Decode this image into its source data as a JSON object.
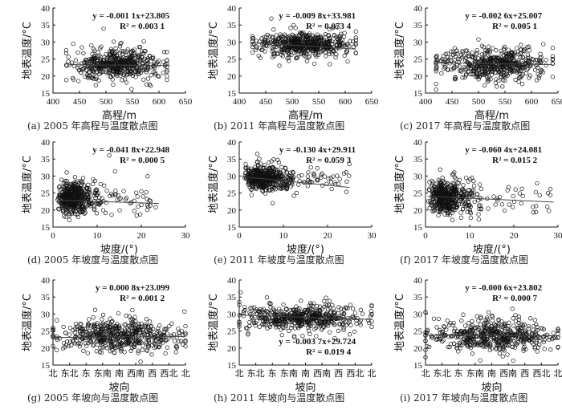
{
  "chart_data": [
    {
      "id": "a",
      "type": "scatter",
      "caption": "(a) 2005 年高程与温度散点图",
      "xlabel": "高程/m",
      "ylabel": "地表温度/°C",
      "xlim": [
        400,
        650
      ],
      "ylim": [
        15,
        40
      ],
      "xticks": [
        "400",
        "450",
        "500",
        "550",
        "600",
        "650"
      ],
      "yticks": [
        "15",
        "20",
        "25",
        "30",
        "35",
        "40"
      ],
      "equation": "y = -0.001 1x+23.805",
      "r2": "R² = 0.003 1",
      "annotation_pos": "top-right",
      "cloud": {
        "x_range": [
          425,
          615
        ],
        "y_center": 23.5,
        "y_spread": 2.2
      },
      "fit": {
        "x": [
          430,
          620
        ],
        "y": [
          23.33,
          23.12
        ]
      }
    },
    {
      "id": "b",
      "type": "scatter",
      "caption": "(b) 2011 年高程与温度散点图",
      "xlabel": "高程/m",
      "ylabel": "地表温度/°C",
      "xlim": [
        400,
        650
      ],
      "ylim": [
        15,
        40
      ],
      "xticks": [
        "400",
        "450",
        "500",
        "550",
        "600",
        "650"
      ],
      "yticks": [
        "15",
        "20",
        "25",
        "30",
        "35",
        "40"
      ],
      "equation": "y = -0.009 8x+33.981",
      "r2": "R² = 0.073 4",
      "annotation_pos": "top-right",
      "cloud": {
        "x_range": [
          425,
          620
        ],
        "y_center": 29.3,
        "y_spread": 1.8
      },
      "fit": {
        "x": [
          430,
          620
        ],
        "y": [
          29.77,
          27.91
        ]
      }
    },
    {
      "id": "c",
      "type": "scatter",
      "caption": "(c) 2017 年高程与温度散点图",
      "xlabel": "高程/m",
      "ylabel": "地表温度/°C",
      "xlim": [
        400,
        650
      ],
      "ylim": [
        15,
        40
      ],
      "xticks": [
        "400",
        "450",
        "500",
        "550",
        "600",
        "650"
      ],
      "yticks": [
        "15",
        "20",
        "25",
        "30",
        "35",
        "40"
      ],
      "equation": "y = -0.002 6x+25.007",
      "r2": "R² = 0.005 1",
      "annotation_pos": "top-right",
      "cloud": {
        "x_range": [
          420,
          640
        ],
        "y_center": 23.5,
        "y_spread": 2.3
      },
      "fit": {
        "x": [
          420,
          640
        ],
        "y": [
          23.9,
          23.34
        ]
      }
    },
    {
      "id": "d",
      "type": "scatter",
      "caption": "(d) 2005 年坡度与温度散点图",
      "xlabel": "坡度/(°)",
      "ylabel": "地表温度/°C",
      "xlim": [
        0,
        30
      ],
      "ylim": [
        15,
        40
      ],
      "xticks": [
        "0",
        "10",
        "20",
        "30"
      ],
      "yticks": [
        "15",
        "20",
        "25",
        "30",
        "35",
        "40"
      ],
      "equation": "y = -0.041 8x+22.948",
      "r2": "R² = 0.000 5",
      "annotation_pos": "top-right",
      "cloud": {
        "x_range": [
          1,
          24
        ],
        "x_center": 5,
        "y_center": 23.5,
        "y_spread": 2.3
      },
      "fit": {
        "x": [
          1,
          24
        ],
        "y": [
          22.91,
          21.94
        ]
      }
    },
    {
      "id": "e",
      "type": "scatter",
      "caption": "(e) 2011 年坡度与温度散点图",
      "xlabel": "坡度/(°)",
      "ylabel": "地表温度/°C",
      "xlim": [
        0,
        30
      ],
      "ylim": [
        15,
        40
      ],
      "xticks": [
        "0",
        "10",
        "20",
        "30"
      ],
      "yticks": [
        "15",
        "20",
        "25",
        "30",
        "35",
        "40"
      ],
      "equation": "y = -0.130 4x+29.911",
      "r2": "R² = 0.059 3",
      "annotation_pos": "top-right",
      "cloud": {
        "x_range": [
          1,
          25
        ],
        "x_center": 6,
        "y_center": 29.2,
        "y_spread": 1.8
      },
      "fit": {
        "x": [
          1,
          25
        ],
        "y": [
          29.78,
          26.65
        ]
      }
    },
    {
      "id": "f",
      "type": "scatter",
      "caption": "(f) 2017 年坡度与温度散点图",
      "xlabel": "坡度/(°)",
      "ylabel": "地表温度/°C",
      "xlim": [
        0,
        30
      ],
      "ylim": [
        15,
        40
      ],
      "xticks": [
        "0",
        "10",
        "20",
        "30"
      ],
      "yticks": [
        "15",
        "20",
        "25",
        "30",
        "35",
        "40"
      ],
      "equation": "y = -0.060 4x+24.081",
      "r2": "R² = 0.015 2",
      "annotation_pos": "top-right",
      "cloud": {
        "x_range": [
          0.5,
          29
        ],
        "x_center": 5,
        "y_center": 23.8,
        "y_spread": 2.4
      },
      "fit": {
        "x": [
          0.5,
          29
        ],
        "y": [
          24.05,
          22.33
        ]
      }
    },
    {
      "id": "g",
      "type": "scatter",
      "caption": "(g) 2005 年坡向与温度散点图",
      "xlabel": "坡向",
      "ylabel": "地表温度/°C",
      "xlim": [
        0,
        360
      ],
      "ylim": [
        15,
        40
      ],
      "xticks": [
        "北",
        "东北",
        "东",
        "东南",
        "南",
        "西南",
        "西",
        "西北",
        "北"
      ],
      "yticks": [
        "15",
        "20",
        "25",
        "30",
        "35",
        "40"
      ],
      "equation": "y = 0.000 8x+23.099",
      "r2": "R² = 0.001 2",
      "annotation_pos": "top-right",
      "cloud": {
        "x_range": [
          0,
          360
        ],
        "y_center": 23.6,
        "y_spread": 2.2
      },
      "fit": {
        "x": [
          0,
          360
        ],
        "y": [
          23.1,
          23.39
        ]
      }
    },
    {
      "id": "h",
      "type": "scatter",
      "caption": "(h) 2011 年坡向与温度散点图",
      "xlabel": "坡向",
      "ylabel": "地表温度/°C",
      "xlim": [
        0,
        360
      ],
      "ylim": [
        15,
        40
      ],
      "xticks": [
        "北",
        "东北",
        "东",
        "东南",
        "南",
        "西南",
        "西",
        "西北",
        "北"
      ],
      "yticks": [
        "15",
        "20",
        "25",
        "30",
        "35",
        "40"
      ],
      "equation": "y = -0.003 7x+29.724",
      "r2": "R² = 0.019 4",
      "annotation_pos": "bottom-right",
      "cloud": {
        "x_range": [
          0,
          360
        ],
        "y_center": 29.0,
        "y_spread": 1.8
      },
      "fit": {
        "x": [
          0,
          360
        ],
        "y": [
          29.72,
          28.39
        ]
      }
    },
    {
      "id": "i",
      "type": "scatter",
      "caption": "(i) 2017 年坡向与温度散点图",
      "xlabel": "坡向",
      "ylabel": "地表温度/°C",
      "xlim": [
        0,
        360
      ],
      "ylim": [
        15,
        40
      ],
      "xticks": [
        "北",
        "东北",
        "东",
        "东南",
        "南",
        "西南",
        "西",
        "西北",
        "北"
      ],
      "yticks": [
        "15",
        "20",
        "25",
        "30",
        "35",
        "40"
      ],
      "equation": "y = -0.000 6x+23.802",
      "r2": "R² = 0.000 7",
      "annotation_pos": "top-right",
      "cloud": {
        "x_range": [
          0,
          360
        ],
        "y_center": 23.6,
        "y_spread": 2.4
      },
      "fit": {
        "x": [
          0,
          360
        ],
        "y": [
          23.8,
          23.58
        ]
      }
    }
  ]
}
